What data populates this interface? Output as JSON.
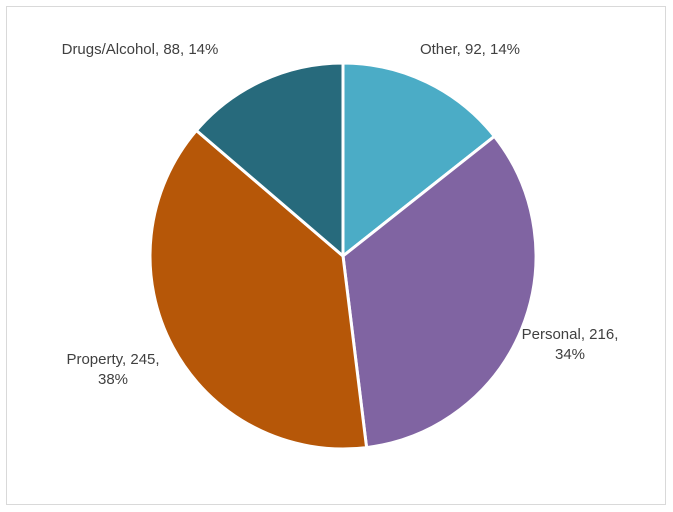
{
  "chart_data": {
    "type": "pie",
    "values": [
      92,
      216,
      245,
      88
    ],
    "value_labels": [
      "Other, 92, 14%",
      "Personal, 216, 34%",
      "Property, 245, 38%",
      "Drugs/Alcohol, 88, 14%"
    ],
    "colors": [
      "#4bacc6",
      "#8064a2",
      "#b65708",
      "#276a7c"
    ]
  }
}
